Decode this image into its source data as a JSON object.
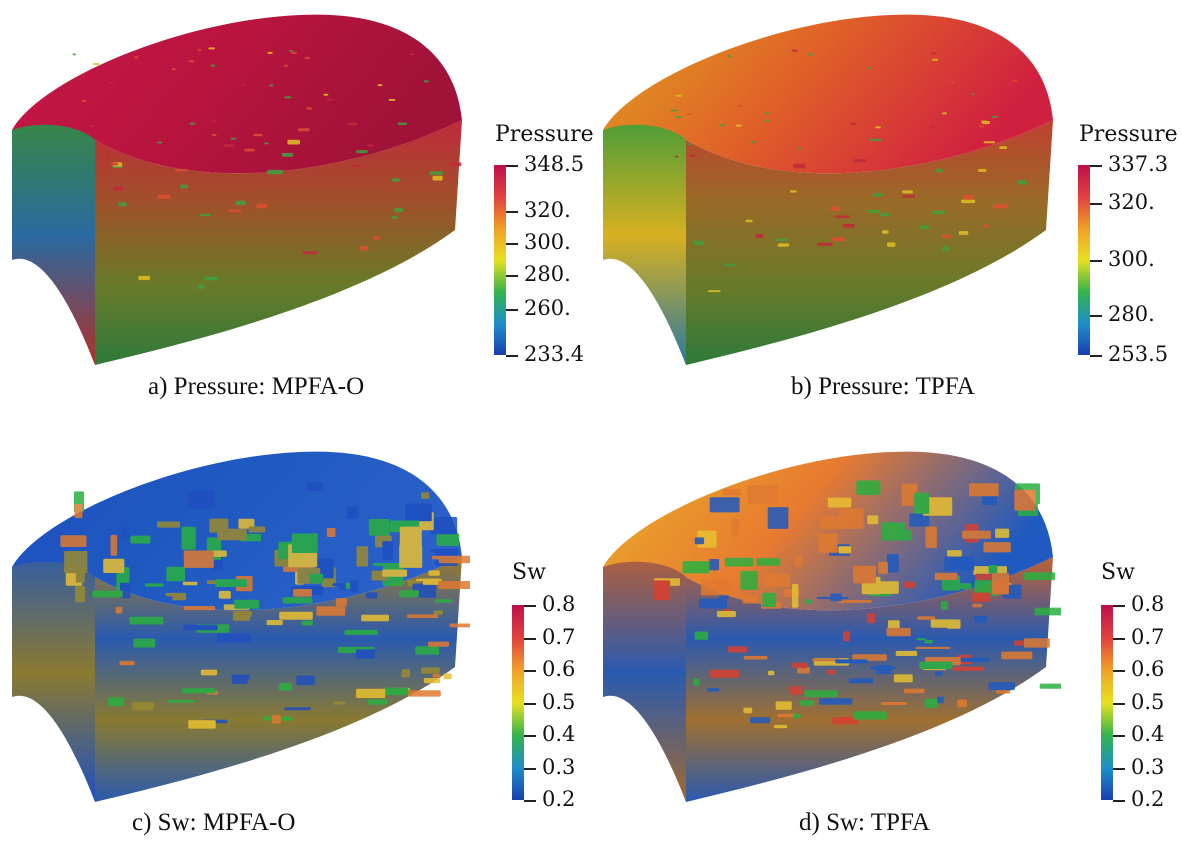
{
  "panels": [
    {
      "id": "a",
      "caption": "a) Pressure: MPFA-O",
      "colorbar": {
        "title": "Pressure",
        "colormap": [
          "#1a3fb0",
          "#1e8fc8",
          "#35b44a",
          "#e8e020",
          "#f0a028",
          "#e04040",
          "#c0104a"
        ],
        "ticks": [
          "348.5",
          "320.",
          "300.",
          "280.",
          "260.",
          "233.4"
        ]
      },
      "surface": {
        "top": [
          "#c8184a",
          "#b8143e",
          "#a01238"
        ],
        "side": [
          "#c02a3a",
          "#a0502a",
          "#6a7a28",
          "#2e7a3a"
        ],
        "front": [
          "#3a8a3a",
          "#2a6aa0",
          "#b0302a"
        ]
      }
    },
    {
      "id": "b",
      "caption": "b) Pressure: TPFA",
      "colorbar": {
        "title": "Pressure",
        "colormap": [
          "#1a3fb0",
          "#1e8fc8",
          "#35b44a",
          "#e8e020",
          "#f0a028",
          "#e04040",
          "#c0104a"
        ],
        "ticks": [
          "337.3",
          "320.",
          "300.",
          "280.",
          "253.5"
        ]
      },
      "surface": {
        "top": [
          "#e0a020",
          "#e06028",
          "#d02040"
        ],
        "side": [
          "#c04030",
          "#9a6a28",
          "#6a7a28",
          "#2e7a3a"
        ],
        "front": [
          "#3a9a3a",
          "#d8b020",
          "#2a7aa0"
        ]
      }
    },
    {
      "id": "c",
      "caption": "c) Sw: MPFA-O",
      "colorbar": {
        "title": "Sw",
        "colormap": [
          "#1a3fb0",
          "#1e8fc8",
          "#35b44a",
          "#e8e020",
          "#f0a028",
          "#e04040",
          "#c0104a"
        ],
        "ticks": [
          "0.8",
          "0.7",
          "0.6",
          "0.5",
          "0.4",
          "0.3",
          "0.2"
        ]
      },
      "surface": {
        "top": [
          "#1f4fc0",
          "#1f5ac0",
          "#2a60c8"
        ],
        "side": [
          "#9a7a30",
          "#2a5ab0",
          "#8a7a30",
          "#2a5ab0"
        ],
        "front": [
          "#2a5ab0",
          "#8a7a30",
          "#1f4fc0"
        ]
      }
    },
    {
      "id": "d",
      "caption": "d) Sw: TPFA",
      "colorbar": {
        "title": "Sw",
        "colormap": [
          "#1a3fb0",
          "#1e8fc8",
          "#35b44a",
          "#e8e020",
          "#f0a028",
          "#e04040",
          "#c0104a"
        ],
        "ticks": [
          "0.8",
          "0.7",
          "0.6",
          "0.5",
          "0.4",
          "0.3",
          "0.2"
        ]
      },
      "surface": {
        "top": [
          "#e8b028",
          "#e87a30",
          "#1f5ac0"
        ],
        "side": [
          "#c06030",
          "#2a5ab0",
          "#a07030",
          "#2a5ab0"
        ],
        "front": [
          "#c06030",
          "#2a5ab0",
          "#a06a30"
        ]
      }
    }
  ]
}
